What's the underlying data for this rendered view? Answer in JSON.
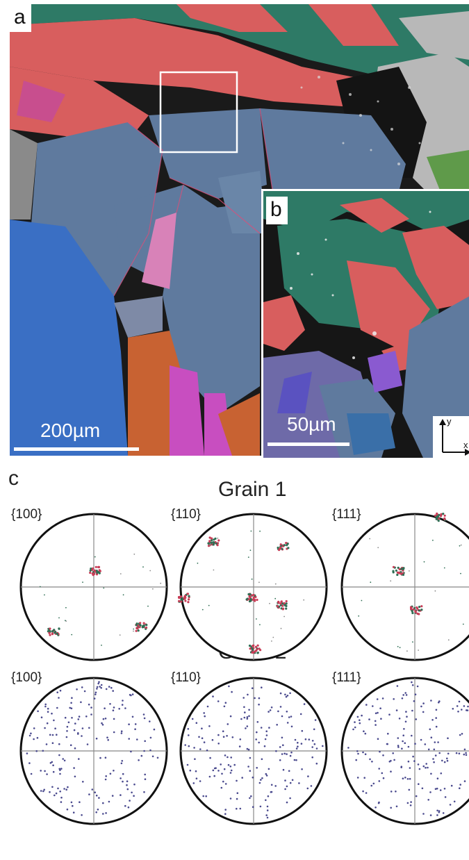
{
  "figure": {
    "panel_a": {
      "letter": "a",
      "scale_label": "200µm"
    },
    "panel_b": {
      "letter": "b",
      "scale_label": "50µm",
      "axis_y": "y",
      "axis_x": "x"
    },
    "panel_c": {
      "letter": "c",
      "grains": [
        {
          "title": "Grain 1",
          "planes": [
            "{100}",
            "{110}",
            "{111}"
          ]
        },
        {
          "title": "Grain 2",
          "planes": [
            "{100}",
            "{110}",
            "{111}"
          ]
        }
      ]
    }
  },
  "colors": {
    "teal": "#2e7a66",
    "salmon": "#d85e5e",
    "slate_blue": "#5f7a9e",
    "bright_blue": "#3a6fc4",
    "orange": "#c86232",
    "magenta": "#c84ec0",
    "grey": "#b8b8b8",
    "pf_red": "#c83c56",
    "pf_green": "#2f6e54",
    "pf_blue": "#4a4a8e"
  }
}
